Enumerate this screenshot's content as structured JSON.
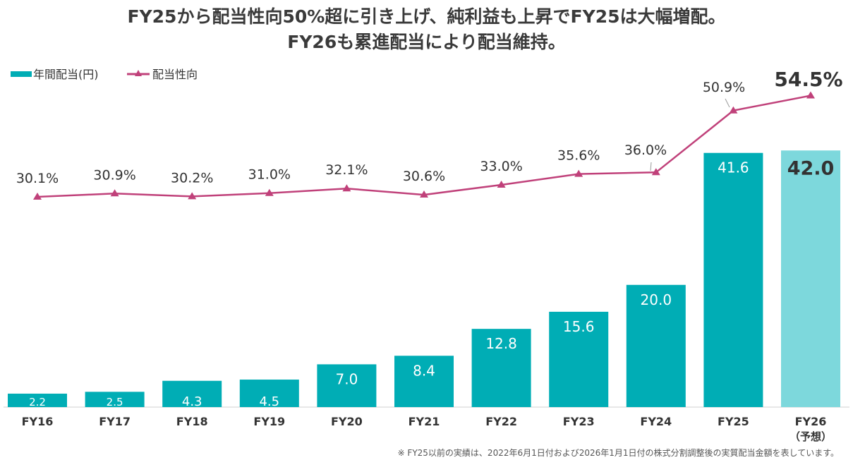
{
  "title": [
    "FY25から配当性向50%超に引き上げ、純利益も上昇でFY25は大幅増配。",
    "FY26も累進配当により配当維持。"
  ],
  "footnote": "※ FY25以前の実績は、2022年6月1日付および2026年1月1日付の株式分割調整後の実質配当金額を表しています。",
  "colors": {
    "bar": "#00adb5",
    "bar_forecast": "#7dd8dc",
    "line": "#c0417a",
    "text": "#333333"
  },
  "chart_data": {
    "type": "bar",
    "categories": [
      "FY16",
      "FY17",
      "FY18",
      "FY19",
      "FY20",
      "FY21",
      "FY22",
      "FY23",
      "FY24",
      "FY25",
      "FY26"
    ],
    "category_sublabels": [
      "",
      "",
      "",
      "",
      "",
      "",
      "",
      "",
      "",
      "",
      "（予想）"
    ],
    "series": [
      {
        "name": "年間配当(円)",
        "type": "bar",
        "values": [
          2.2,
          2.5,
          4.3,
          4.5,
          7.0,
          8.4,
          12.8,
          15.6,
          20.0,
          41.6,
          42.0
        ],
        "labels": [
          "2.2",
          "2.5",
          "4.3",
          "4.5",
          "7.0",
          "8.4",
          "12.8",
          "15.6",
          "20.0",
          "41.6",
          "42.0"
        ],
        "forecast_index": 10
      },
      {
        "name": "配当性向",
        "type": "line",
        "marker": "triangle",
        "values": [
          30.1,
          30.9,
          30.2,
          31.0,
          32.1,
          30.6,
          33.0,
          35.6,
          36.0,
          50.9,
          54.5
        ],
        "labels": [
          "30.1%",
          "30.9%",
          "30.2%",
          "31.0%",
          "32.1%",
          "30.6%",
          "33.0%",
          "35.6%",
          "36.0%",
          "50.9%",
          "54.5%"
        ]
      }
    ],
    "legend": {
      "position": "top-left",
      "entries": [
        "年間配当(円)",
        "配当性向"
      ]
    },
    "grid": false
  }
}
